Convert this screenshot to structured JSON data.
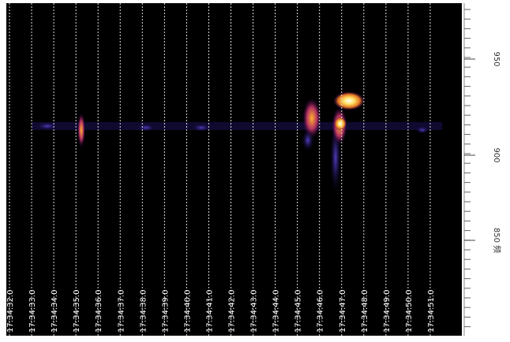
{
  "time_axis": {
    "labels": [
      "17:34:32.0",
      "17:34:33.0",
      "17:34:34.0",
      "17:34:35.0",
      "17:34:36.0",
      "17:34:37.0",
      "17:34:38.0",
      "17:34:39.0",
      "17:34:40.0",
      "17:34:41.0",
      "17:34:42.0",
      "17:34:43.0",
      "17:34:44.0",
      "17:34:45.0",
      "17:34:46.0",
      "17:34:47.0",
      "17:34:48.0",
      "17:34:49.0",
      "17:34:50.0",
      "17:34:51.0"
    ]
  },
  "frequency_axis": {
    "labels": [
      "950",
      "900",
      "850 频"
    ]
  }
}
